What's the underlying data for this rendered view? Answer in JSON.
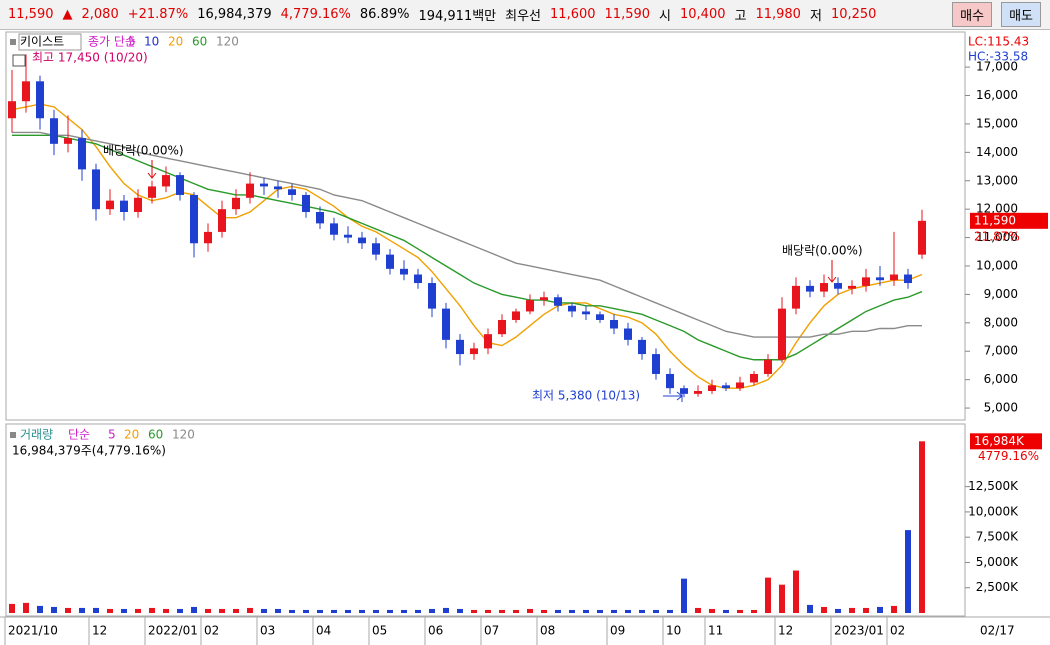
{
  "header": {
    "items": [
      {
        "text": "11,590",
        "color": "#e00000"
      },
      {
        "text": "▲",
        "color": "#e00000"
      },
      {
        "text": "2,080",
        "color": "#e00000"
      },
      {
        "text": "+21.87%",
        "color": "#e00000"
      },
      {
        "text": "16,984,379",
        "color": "#000000"
      },
      {
        "text": "4,779.16%",
        "color": "#e00000"
      },
      {
        "text": "86.89%",
        "color": "#000000"
      },
      {
        "text": "194,911백만",
        "color": "#000000"
      },
      {
        "text": "최우선",
        "color": "#000000"
      },
      {
        "text": "11,600",
        "color": "#e00000"
      },
      {
        "text": "11,590",
        "color": "#e00000"
      },
      {
        "text": "시",
        "color": "#000000"
      },
      {
        "text": "10,400",
        "color": "#e00000"
      },
      {
        "text": "고",
        "color": "#000000"
      },
      {
        "text": "11,980",
        "color": "#e00000"
      },
      {
        "text": "저",
        "color": "#000000"
      },
      {
        "text": "10,250",
        "color": "#e00000"
      }
    ],
    "buttons": [
      {
        "text": "매수",
        "color": "#f7c8c8"
      },
      {
        "text": "매도",
        "color": "#cfe0f7"
      }
    ]
  },
  "chart_data": [
    {
      "type": "candlestick",
      "title": "키이스트",
      "series_label": "종가 단순",
      "categories": [
        "2021/10",
        null,
        null,
        null,
        null,
        null,
        "12",
        null,
        null,
        null,
        "2022/01",
        null,
        null,
        null,
        "02",
        null,
        null,
        null,
        "03",
        null,
        null,
        null,
        "04",
        null,
        null,
        null,
        "05",
        null,
        null,
        null,
        "06",
        null,
        null,
        null,
        "07",
        null,
        null,
        null,
        "08",
        null,
        null,
        null,
        null,
        "09",
        null,
        null,
        null,
        "10",
        null,
        null,
        "11",
        null,
        null,
        null,
        null,
        "12",
        null,
        null,
        null,
        "2023/01",
        null,
        null,
        null,
        "02",
        null,
        null
      ],
      "open": [
        15200,
        15800,
        16500,
        15200,
        14300,
        14500,
        13400,
        12000,
        12300,
        11900,
        12400,
        12800,
        13200,
        12500,
        10800,
        11200,
        12000,
        12400,
        12900,
        12800,
        12700,
        12500,
        11900,
        11500,
        11100,
        11000,
        10800,
        10400,
        9900,
        9700,
        9400,
        8500,
        7400,
        6900,
        7100,
        7600,
        8100,
        8400,
        8800,
        8900,
        8600,
        8400,
        8300,
        8100,
        7800,
        7400,
        6900,
        6200,
        5700,
        5500,
        5600,
        5800,
        5700,
        5900,
        6200,
        6700,
        8500,
        9300,
        9100,
        9400,
        9200,
        9300,
        9600,
        9500,
        9700,
        10400
      ],
      "high": [
        16900,
        17450,
        16700,
        15500,
        15300,
        14800,
        13600,
        12700,
        12500,
        12700,
        13000,
        13500,
        13300,
        12600,
        11500,
        12300,
        12700,
        13300,
        13100,
        13000,
        12900,
        12600,
        12100,
        11700,
        11400,
        11200,
        11000,
        10600,
        10200,
        9900,
        9600,
        8700,
        7600,
        7300,
        7800,
        8300,
        8500,
        9000,
        9100,
        9000,
        8700,
        8600,
        8400,
        8300,
        8000,
        7500,
        7100,
        6400,
        5800,
        5800,
        6000,
        5900,
        6100,
        6300,
        6900,
        8900,
        9600,
        9500,
        9700,
        9600,
        9500,
        9900,
        10000,
        11200,
        9900,
        11980
      ],
      "low": [
        14700,
        15400,
        14800,
        13900,
        14000,
        13000,
        11600,
        11800,
        11600,
        11700,
        12200,
        12600,
        12300,
        10300,
        10500,
        11000,
        11800,
        12200,
        12500,
        12400,
        12300,
        11700,
        11300,
        10900,
        10800,
        10600,
        10200,
        9700,
        9500,
        9200,
        8200,
        7100,
        6500,
        6700,
        6900,
        7500,
        8000,
        8300,
        8600,
        8400,
        8200,
        8100,
        8000,
        7600,
        7200,
        6700,
        6000,
        5500,
        5380,
        5400,
        5500,
        5600,
        5600,
        5800,
        6100,
        6600,
        8300,
        8900,
        8900,
        9000,
        9000,
        9100,
        9300,
        9300,
        9200,
        10250
      ],
      "close": [
        15800,
        16500,
        15200,
        14300,
        14500,
        13400,
        12000,
        12300,
        11900,
        12400,
        12800,
        13200,
        12500,
        10800,
        11200,
        12000,
        12400,
        12900,
        12800,
        12700,
        12500,
        11900,
        11500,
        11100,
        11000,
        10800,
        10400,
        9900,
        9700,
        9400,
        8500,
        7400,
        6900,
        7100,
        7600,
        8100,
        8400,
        8800,
        8900,
        8600,
        8400,
        8300,
        8100,
        7800,
        7400,
        6900,
        6200,
        5700,
        5500,
        5600,
        5800,
        5700,
        5900,
        6200,
        6700,
        8500,
        9300,
        9100,
        9400,
        9200,
        9300,
        9600,
        9500,
        9700,
        9400,
        11590
      ],
      "up_color": "#e8141e",
      "down_color": "#1f3fd0",
      "series": [
        {
          "name": "5",
          "color": "#d020c8"
        },
        {
          "name": "10",
          "color": "#2030d0"
        },
        {
          "name": "20",
          "color": "#f0a000",
          "values": [
            15500,
            15600,
            15700,
            15600,
            15200,
            14800,
            14200,
            13500,
            12900,
            12500,
            12300,
            12400,
            12600,
            12500,
            12100,
            11700,
            11700,
            11900,
            12300,
            12700,
            12800,
            12700,
            12400,
            12100,
            11700,
            11400,
            11200,
            10900,
            10600,
            10300,
            9800,
            9200,
            8600,
            7900,
            7300,
            7200,
            7500,
            7900,
            8300,
            8600,
            8700,
            8700,
            8500,
            8300,
            8200,
            8000,
            7600,
            7000,
            6500,
            6100,
            5800,
            5700,
            5700,
            5800,
            6000,
            6500,
            7300,
            8000,
            8600,
            9000,
            9200,
            9300,
            9400,
            9500,
            9500,
            9700
          ]
        },
        {
          "name": "60",
          "color": "#2a9a2a",
          "values": [
            14600,
            14600,
            14600,
            14600,
            14500,
            14400,
            14300,
            14100,
            13900,
            13700,
            13500,
            13300,
            13100,
            12900,
            12700,
            12600,
            12500,
            12500,
            12400,
            12300,
            12200,
            12100,
            12000,
            11900,
            11700,
            11500,
            11300,
            11100,
            10900,
            10600,
            10300,
            10000,
            9700,
            9400,
            9200,
            9000,
            8900,
            8800,
            8800,
            8700,
            8700,
            8600,
            8600,
            8500,
            8400,
            8300,
            8100,
            7900,
            7700,
            7400,
            7200,
            7000,
            6800,
            6700,
            6700,
            6700,
            6900,
            7200,
            7500,
            7800,
            8100,
            8400,
            8600,
            8800,
            8900,
            9100
          ]
        },
        {
          "name": "120",
          "color": "#8a8a8a",
          "values": [
            14700,
            14700,
            14700,
            14600,
            14600,
            14500,
            14400,
            14300,
            14200,
            14000,
            13900,
            13800,
            13700,
            13600,
            13500,
            13400,
            13300,
            13200,
            13100,
            13000,
            12900,
            12800,
            12700,
            12500,
            12400,
            12300,
            12100,
            11900,
            11700,
            11500,
            11300,
            11100,
            10900,
            10700,
            10500,
            10300,
            10100,
            10000,
            9900,
            9800,
            9700,
            9600,
            9500,
            9300,
            9100,
            8900,
            8700,
            8500,
            8300,
            8100,
            7900,
            7700,
            7600,
            7500,
            7500,
            7500,
            7500,
            7500,
            7600,
            7600,
            7700,
            7700,
            7800,
            7800,
            7900,
            7900
          ]
        }
      ],
      "ylim": [
        4650,
        18130
      ],
      "yticks": [
        {
          "value": 5000,
          "label": "5,000"
        },
        {
          "value": 6000,
          "label": "6,000"
        },
        {
          "value": 7000,
          "label": "7,000"
        },
        {
          "value": 8000,
          "label": "8,000"
        },
        {
          "value": 9000,
          "label": "9,000"
        },
        {
          "value": 10000,
          "label": "10,000"
        },
        {
          "value": 11000,
          "label": "11,000"
        },
        {
          "value": 12000,
          "label": "12,000"
        },
        {
          "value": 13000,
          "label": "13,000"
        },
        {
          "value": 14000,
          "label": "14,000"
        },
        {
          "value": 15000,
          "label": "15,000"
        },
        {
          "value": 16000,
          "label": "16,000"
        },
        {
          "value": 17000,
          "label": "17,000"
        }
      ],
      "high_label": "최고 17,450 (10/20)",
      "low_label": "최저 5,380 (10/13)",
      "dividend_labels": [
        "배당락(0.00%)",
        "배당락(0.00%)"
      ],
      "last_label": "11,590",
      "change_label": "21.87%",
      "lc_label": "LC:115.43",
      "hc_label": "HC:-33.58",
      "end_label": "02/17"
    },
    {
      "type": "bar",
      "title": "거래량",
      "series_label": "단순",
      "series": [
        {
          "name": "5",
          "color": "#d020c8"
        },
        {
          "name": "20",
          "color": "#f0a000"
        },
        {
          "name": "60",
          "color": "#2a9a2a"
        },
        {
          "name": "120",
          "color": "#8a8a8a"
        }
      ],
      "values": [
        900,
        1000,
        700,
        600,
        500,
        500,
        500,
        400,
        400,
        400,
        500,
        400,
        400,
        600,
        400,
        400,
        400,
        500,
        400,
        400,
        300,
        300,
        300,
        300,
        300,
        300,
        300,
        300,
        300,
        300,
        400,
        500,
        400,
        300,
        300,
        300,
        300,
        400,
        300,
        300,
        300,
        300,
        300,
        300,
        300,
        300,
        300,
        300,
        3400,
        500,
        400,
        300,
        300,
        300,
        3500,
        2800,
        4200,
        800,
        600,
        400,
        500,
        500,
        600,
        700,
        8200,
        16984
      ],
      "ylim": [
        0,
        18300
      ],
      "yticks": [
        {
          "value": 2500,
          "label": "2,500K"
        },
        {
          "value": 5000,
          "label": "5,000K"
        },
        {
          "value": 7500,
          "label": "7,500K"
        },
        {
          "value": 10000,
          "label": "10,000K"
        },
        {
          "value": 12500,
          "label": "12,500K"
        }
      ],
      "info": "16,984,379주(4,779.16%)",
      "last_label": "16,984K",
      "change_label": "4779.16%"
    }
  ]
}
